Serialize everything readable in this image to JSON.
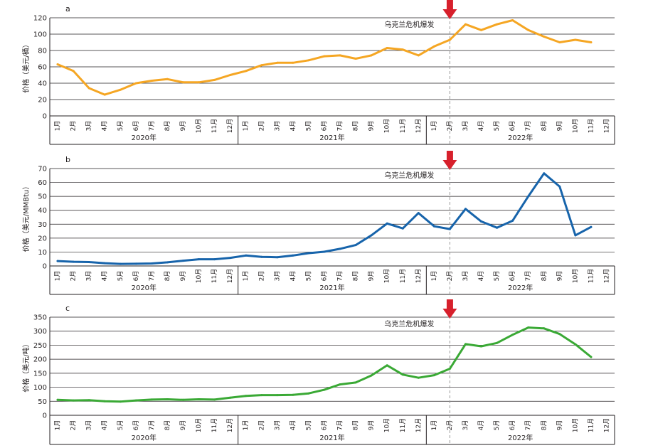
{
  "months": [
    "1月",
    "2月",
    "3月",
    "4月",
    "5月",
    "6月",
    "7月",
    "8月",
    "9月",
    "10月",
    "11月",
    "12月"
  ],
  "years": [
    "2020年",
    "2021年",
    "2022年"
  ],
  "annotation": "乌克兰危机爆发",
  "crisis_index": 25,
  "arrow_color": "#d7202c",
  "chart_data": [
    {
      "type": "line",
      "panel": "a",
      "ylabel": "价格（美元/桶）",
      "ylim": [
        0,
        120
      ],
      "yticks": [
        0,
        20,
        40,
        60,
        80,
        100,
        120
      ],
      "color": "#f5a623",
      "values": [
        63,
        55,
        34,
        26,
        32,
        40,
        43,
        45,
        41,
        41,
        44,
        50,
        55,
        62,
        65,
        65,
        68,
        73,
        74,
        70,
        74,
        83,
        81,
        74,
        85,
        93,
        112,
        105,
        112,
        117,
        105,
        97,
        90,
        93,
        90
      ]
    },
    {
      "type": "line",
      "panel": "b",
      "ylabel": "价格（美元/MMBtu）",
      "ylim": [
        0,
        70
      ],
      "yticks": [
        0,
        10,
        20,
        30,
        40,
        50,
        60,
        70
      ],
      "color": "#1764ab",
      "values": [
        3.5,
        3,
        2.8,
        2,
        1.5,
        1.6,
        1.8,
        2.6,
        3.8,
        4.8,
        4.8,
        5.8,
        7.5,
        6.5,
        6.3,
        7.5,
        9.2,
        10.2,
        12.3,
        15,
        22,
        30.5,
        27,
        38,
        28.5,
        26.5,
        41,
        32,
        27.5,
        32.5,
        50,
        66.5,
        57,
        22,
        28
      ]
    },
    {
      "type": "line",
      "panel": "c",
      "ylabel": "价格（美元/吨）",
      "ylim": [
        0,
        350
      ],
      "yticks": [
        0,
        50,
        100,
        150,
        200,
        250,
        300,
        350
      ],
      "color": "#3aa935",
      "values": [
        55,
        53,
        54,
        50,
        49,
        53,
        56,
        57,
        55,
        57,
        56,
        63,
        69,
        72,
        72,
        73,
        78,
        91,
        110,
        117,
        142,
        178,
        145,
        134,
        143,
        166,
        254,
        246,
        258,
        287,
        313,
        310,
        290,
        253,
        208
      ]
    }
  ]
}
